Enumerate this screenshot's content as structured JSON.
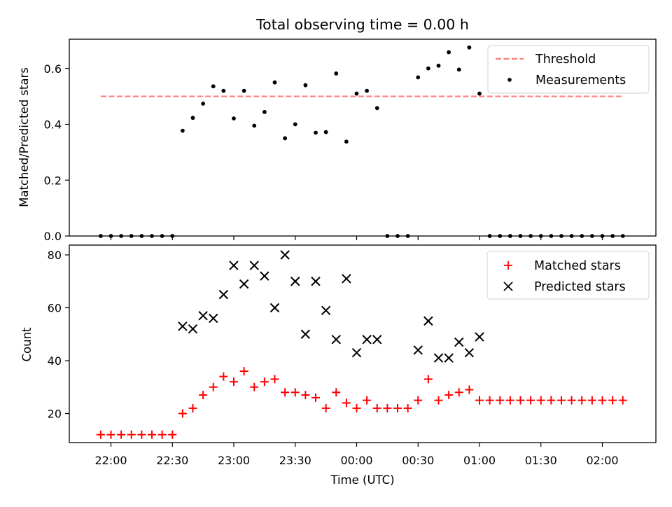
{
  "chart_data": [
    {
      "type": "scatter",
      "title": "Total observing time = 0.00 h",
      "xlabel": "",
      "ylabel": "Matched/Predicted stars",
      "ylim": [
        0,
        0.7
      ],
      "yticks": [
        0.0,
        0.2,
        0.4,
        0.6
      ],
      "ytick_labels": [
        "0.0",
        "0.2",
        "0.4",
        "0.6"
      ],
      "x_tick_labels_shown": false,
      "legend_position": "upper right",
      "legend": [
        "Threshold",
        "Measurements"
      ],
      "threshold": {
        "name": "Threshold",
        "value": 0.5,
        "x_start": "21:55",
        "x_end": "02:10",
        "color": "#ff7f7f",
        "style": "dashed"
      },
      "measurements": {
        "name": "Measurements",
        "color": "#000000",
        "x": [
          "21:55",
          "22:00",
          "22:05",
          "22:10",
          "22:15",
          "22:20",
          "22:25",
          "22:30",
          "22:35",
          "22:40",
          "22:45",
          "22:50",
          "22:55",
          "23:00",
          "23:05",
          "23:10",
          "23:15",
          "23:20",
          "23:25",
          "23:30",
          "23:35",
          "23:40",
          "23:45",
          "23:50",
          "23:55",
          "00:00",
          "00:05",
          "00:10",
          "00:15",
          "00:20",
          "00:25",
          "00:30",
          "00:35",
          "00:40",
          "00:45",
          "00:50",
          "00:55",
          "01:00",
          "01:05",
          "01:10",
          "01:15",
          "01:20",
          "01:25",
          "01:30",
          "01:35",
          "01:40",
          "01:45",
          "01:50",
          "01:55",
          "02:00",
          "02:05",
          "02:10"
        ],
        "y": [
          0,
          0,
          0,
          0,
          0,
          0,
          0,
          0,
          0.377,
          0.423,
          0.474,
          0.536,
          0.52,
          0.421,
          0.52,
          0.395,
          0.444,
          0.55,
          0.35,
          0.4,
          0.54,
          0.37,
          0.372,
          0.582,
          0.338,
          0.51,
          0.52,
          0.458,
          0,
          0,
          0,
          0.568,
          0.6,
          0.61,
          0.658,
          0.596,
          0.675,
          0.51,
          0,
          0,
          0,
          0,
          0,
          0,
          0,
          0,
          0,
          0,
          0,
          0,
          0,
          0
        ]
      }
    },
    {
      "type": "scatter",
      "title": "",
      "xlabel": "Time (UTC)",
      "ylabel": "Count",
      "ylim": [
        8.5,
        84
      ],
      "yticks": [
        20,
        40,
        60,
        80
      ],
      "ytick_labels": [
        "20",
        "40",
        "60",
        "80"
      ],
      "xticks": [
        "22:00",
        "22:30",
        "23:00",
        "23:30",
        "00:00",
        "00:30",
        "01:00",
        "01:30",
        "02:00"
      ],
      "legend_position": "upper right",
      "legend": [
        "Matched stars",
        "Predicted stars"
      ],
      "series": [
        {
          "name": "Matched stars",
          "marker": "+",
          "color": "#ff0000",
          "x": [
            "21:55",
            "22:00",
            "22:05",
            "22:10",
            "22:15",
            "22:20",
            "22:25",
            "22:30",
            "22:35",
            "22:40",
            "22:45",
            "22:50",
            "22:55",
            "23:00",
            "23:05",
            "23:10",
            "23:15",
            "23:20",
            "23:25",
            "23:30",
            "23:35",
            "23:40",
            "23:45",
            "23:50",
            "23:55",
            "00:00",
            "00:05",
            "00:10",
            "00:15",
            "00:20",
            "00:25",
            "00:30",
            "00:35",
            "00:40",
            "00:45",
            "00:50",
            "00:55",
            "01:00",
            "01:05",
            "01:10",
            "01:15",
            "01:20",
            "01:25",
            "01:30",
            "01:35",
            "01:40",
            "01:45",
            "01:50",
            "01:55",
            "02:00",
            "02:05",
            "02:10"
          ],
          "y": [
            12,
            12,
            12,
            12,
            12,
            12,
            12,
            12,
            20,
            22,
            27,
            30,
            34,
            32,
            36,
            30,
            32,
            33,
            28,
            28,
            27,
            26,
            22,
            28,
            24,
            22,
            25,
            22,
            22,
            22,
            22,
            25,
            33,
            25,
            27,
            28,
            29,
            25,
            25,
            25,
            25,
            25,
            25,
            25,
            25,
            25,
            25,
            25,
            25,
            25,
            25,
            25
          ]
        },
        {
          "name": "Predicted stars",
          "marker": "x",
          "color": "#000000",
          "x": [
            "22:35",
            "22:40",
            "22:45",
            "22:50",
            "22:55",
            "23:00",
            "23:05",
            "23:10",
            "23:15",
            "23:20",
            "23:25",
            "23:30",
            "23:35",
            "23:40",
            "23:45",
            "23:50",
            "23:55",
            "00:00",
            "00:05",
            "00:10",
            "00:30",
            "00:35",
            "00:40",
            "00:45",
            "00:50",
            "00:55",
            "01:00"
          ],
          "y": [
            53,
            52,
            57,
            56,
            65,
            76,
            69,
            76,
            72,
            60,
            80,
            70,
            50,
            70,
            59,
            48,
            71,
            43,
            48,
            48,
            44,
            55,
            41,
            41,
            47,
            43,
            49
          ]
        }
      ]
    }
  ]
}
